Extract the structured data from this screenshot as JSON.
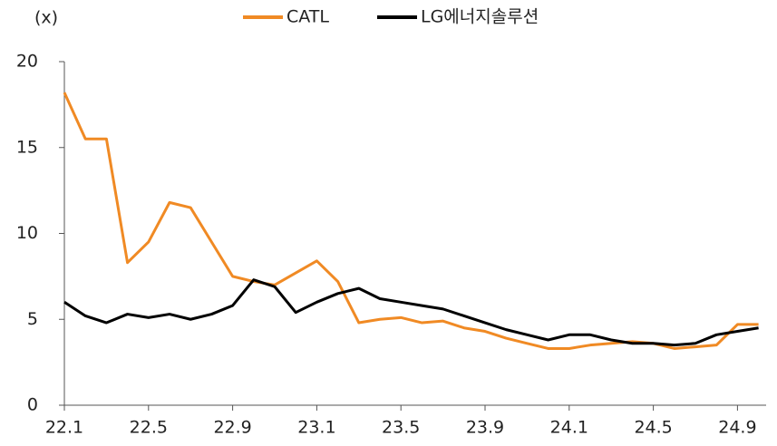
{
  "chart_data": {
    "type": "line",
    "y_label": "(x)",
    "categories": [
      "22.1",
      null,
      null,
      null,
      "22.5",
      null,
      null,
      null,
      "22.9",
      null,
      null,
      null,
      "23.1",
      null,
      null,
      null,
      "23.5",
      null,
      null,
      null,
      "23.9",
      null,
      null,
      null,
      "24.1",
      null,
      null,
      null,
      "24.5",
      null,
      null,
      null,
      "24.9",
      null
    ],
    "series": [
      {
        "name": "CATL",
        "color": "#f08a24",
        "values": [
          18.2,
          15.5,
          15.5,
          8.3,
          9.5,
          11.8,
          11.5,
          9.5,
          7.5,
          7.2,
          7.0,
          7.7,
          8.4,
          7.2,
          4.8,
          5.0,
          5.1,
          4.8,
          4.9,
          4.5,
          4.3,
          3.9,
          3.6,
          3.3,
          3.3,
          3.5,
          3.6,
          3.7,
          3.6,
          3.3,
          3.4,
          3.5,
          4.7,
          4.7
        ]
      },
      {
        "name": "LG에너지솔루션",
        "color": "#000000",
        "values": [
          6.0,
          5.2,
          4.8,
          5.3,
          5.1,
          5.3,
          5.0,
          5.3,
          5.8,
          7.3,
          6.9,
          5.4,
          6.0,
          6.5,
          6.8,
          6.2,
          6.0,
          5.8,
          5.6,
          5.2,
          4.8,
          4.4,
          4.1,
          3.8,
          4.1,
          4.1,
          3.8,
          3.6,
          3.6,
          3.5,
          3.6,
          4.1,
          4.3,
          4.5
        ]
      }
    ],
    "ylim": [
      0,
      20
    ],
    "yticks": [
      0,
      5,
      10,
      15,
      20
    ],
    "grid": false,
    "legend": "top"
  }
}
